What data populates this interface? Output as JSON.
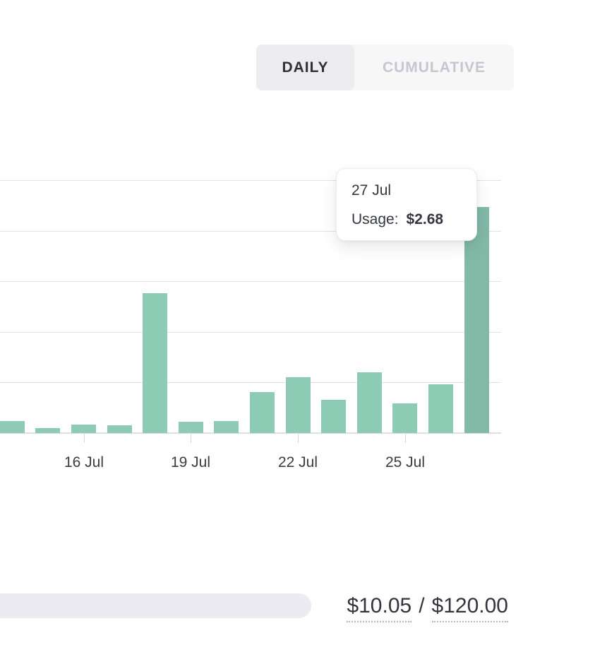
{
  "toggle": {
    "options": [
      {
        "label": "DAILY",
        "active": true
      },
      {
        "label": "CUMULATIVE",
        "active": false
      }
    ]
  },
  "chart_data": {
    "type": "bar",
    "x": [
      "14 Jul",
      "15 Jul",
      "16 Jul",
      "17 Jul",
      "18 Jul",
      "19 Jul",
      "20 Jul",
      "21 Jul",
      "22 Jul",
      "23 Jul",
      "24 Jul",
      "25 Jul",
      "26 Jul",
      "27 Jul"
    ],
    "values": [
      0.14,
      0.06,
      0.1,
      0.09,
      1.66,
      0.13,
      0.14,
      0.49,
      0.66,
      0.39,
      0.72,
      0.35,
      0.58,
      2.68
    ],
    "unit": "USD",
    "ylim": [
      0,
      3.0
    ],
    "gridline_step": 0.6,
    "grid": true,
    "x_tick_labels": [
      "16 Jul",
      "19 Jul",
      "22 Jul",
      "25 Jul"
    ],
    "x_tick_indices": [
      2,
      5,
      8,
      11
    ],
    "highlighted_index": 13,
    "highlighted_tooltip": {
      "date": "27 Jul",
      "label": "Usage:",
      "value": "$2.68"
    }
  },
  "summary": {
    "used": "$10.05",
    "separator": "/",
    "limit": "$120.00"
  },
  "colors": {
    "bar": "#8ECBB4",
    "bar_highlight": "#82B9A7",
    "toggle_bg": "#F7F7F8",
    "toggle_active_bg": "#ECECF1",
    "toggle_active_text": "#2F3038",
    "toggle_inactive_text": "#C6C6D1",
    "progress_track": "#EBEBF1"
  }
}
